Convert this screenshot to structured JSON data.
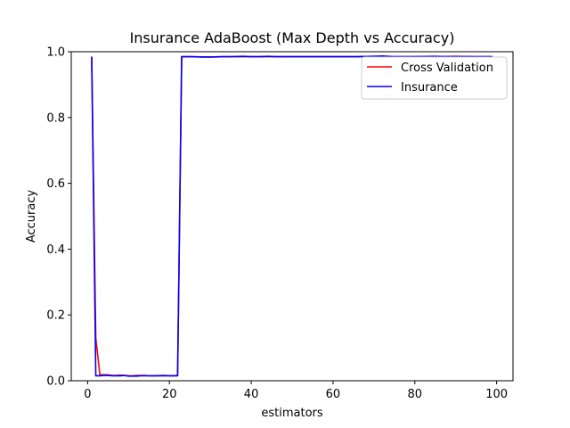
{
  "chart_data": {
    "type": "line",
    "title": "Insurance AdaBoost (Max Depth vs Accuracy)",
    "xlabel": "estimators",
    "ylabel": "Accuracy",
    "xlim": [
      -4,
      104
    ],
    "ylim": [
      0.0,
      1.0
    ],
    "x_ticks": [
      0,
      20,
      40,
      60,
      80,
      100
    ],
    "x_tick_labels": [
      "0",
      "20",
      "40",
      "60",
      "80",
      "100"
    ],
    "y_ticks": [
      0.0,
      0.2,
      0.4,
      0.6,
      0.8,
      1.0
    ],
    "y_tick_labels": [
      "0.0",
      "0.2",
      "0.4",
      "0.6",
      "0.8",
      "1.0"
    ],
    "grid": false,
    "legend_position": "top-right",
    "series": [
      {
        "name": "Cross Validation",
        "color": "#ff0000",
        "x": [
          1,
          2,
          3,
          4,
          5,
          6,
          7,
          8,
          9,
          10,
          11,
          12,
          13,
          14,
          15,
          16,
          17,
          18,
          19,
          20,
          21,
          22,
          23,
          25,
          30,
          35,
          40,
          45,
          50,
          55,
          60,
          65,
          70,
          75,
          80,
          85,
          90,
          95,
          99
        ],
        "y": [
          0.985,
          0.13,
          0.018,
          0.018,
          0.018,
          0.016,
          0.016,
          0.017,
          0.016,
          0.015,
          0.015,
          0.016,
          0.016,
          0.016,
          0.015,
          0.015,
          0.015,
          0.016,
          0.016,
          0.015,
          0.015,
          0.016,
          0.985,
          0.985,
          0.984,
          0.985,
          0.985,
          0.985,
          0.985,
          0.985,
          0.985,
          0.985,
          0.986,
          0.985,
          0.985,
          0.985,
          0.986,
          0.985,
          0.985
        ]
      },
      {
        "name": "Insurance",
        "color": "#0000ff",
        "x": [
          1,
          2,
          3,
          4,
          5,
          6,
          7,
          8,
          9,
          10,
          11,
          12,
          13,
          14,
          15,
          16,
          17,
          18,
          19,
          20,
          21,
          22,
          23,
          25,
          28,
          30,
          33,
          35,
          38,
          40,
          42,
          44,
          46,
          50,
          54,
          58,
          62,
          66,
          70,
          72,
          75,
          80,
          85,
          88,
          90,
          95,
          99
        ],
        "y": [
          0.985,
          0.015,
          0.015,
          0.016,
          0.016,
          0.015,
          0.015,
          0.015,
          0.016,
          0.014,
          0.014,
          0.014,
          0.015,
          0.015,
          0.015,
          0.015,
          0.015,
          0.015,
          0.015,
          0.015,
          0.015,
          0.015,
          0.985,
          0.985,
          0.984,
          0.984,
          0.985,
          0.985,
          0.986,
          0.985,
          0.985,
          0.986,
          0.985,
          0.985,
          0.985,
          0.985,
          0.985,
          0.985,
          0.986,
          0.987,
          0.985,
          0.985,
          0.986,
          0.985,
          0.985,
          0.985,
          0.985
        ]
      }
    ]
  }
}
